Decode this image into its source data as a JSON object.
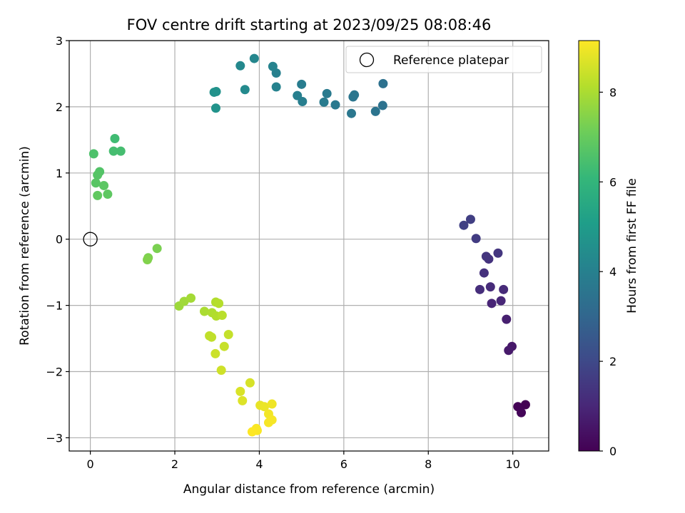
{
  "chart_data": {
    "type": "scatter",
    "title": "FOV centre drift starting at 2023/09/25 08:08:46",
    "xlabel": "Angular distance from reference (arcmin)",
    "ylabel": "Rotation from reference (arcmin)",
    "xlim": [
      -0.5,
      10.85
    ],
    "ylim": [
      -3.2,
      3.0
    ],
    "xticks": [
      0,
      2,
      4,
      6,
      8,
      10
    ],
    "yticks": [
      -3,
      -2,
      -1,
      0,
      1,
      2,
      3
    ],
    "grid": true,
    "colormap": "viridis",
    "colorbar": {
      "label": "Hours from first FF file",
      "range": [
        0,
        9.15
      ],
      "ticks": [
        0,
        2,
        4,
        6,
        8
      ]
    },
    "legend": {
      "position": "top-right",
      "entries": [
        "Reference platepar"
      ]
    },
    "reference_point": {
      "x": 0,
      "y": 0,
      "label": "Reference platepar"
    },
    "points": [
      {
        "x": 10.3,
        "y": -2.5,
        "c": 0.0
      },
      {
        "x": 10.12,
        "y": -2.53,
        "c": 0.05
      },
      {
        "x": 10.2,
        "y": -2.62,
        "c": 0.1
      },
      {
        "x": 9.98,
        "y": -1.62,
        "c": 0.6
      },
      {
        "x": 9.9,
        "y": -1.68,
        "c": 0.65
      },
      {
        "x": 9.85,
        "y": -1.21,
        "c": 0.8
      },
      {
        "x": 9.5,
        "y": -0.97,
        "c": 0.95
      },
      {
        "x": 9.72,
        "y": -0.93,
        "c": 1.0
      },
      {
        "x": 9.78,
        "y": -0.76,
        "c": 1.1
      },
      {
        "x": 9.47,
        "y": -0.72,
        "c": 1.15
      },
      {
        "x": 9.22,
        "y": -0.76,
        "c": 1.2
      },
      {
        "x": 9.32,
        "y": -0.51,
        "c": 1.3
      },
      {
        "x": 9.43,
        "y": -0.3,
        "c": 1.35
      },
      {
        "x": 9.37,
        "y": -0.26,
        "c": 1.4
      },
      {
        "x": 9.65,
        "y": -0.21,
        "c": 1.45
      },
      {
        "x": 9.13,
        "y": 0.01,
        "c": 1.6
      },
      {
        "x": 9.0,
        "y": 0.3,
        "c": 1.7
      },
      {
        "x": 8.84,
        "y": 0.21,
        "c": 1.75
      },
      {
        "x": 6.93,
        "y": 2.35,
        "c": 3.4
      },
      {
        "x": 6.92,
        "y": 2.02,
        "c": 3.45
      },
      {
        "x": 6.75,
        "y": 1.93,
        "c": 3.5
      },
      {
        "x": 6.22,
        "y": 2.15,
        "c": 3.55
      },
      {
        "x": 6.25,
        "y": 2.18,
        "c": 3.6
      },
      {
        "x": 6.18,
        "y": 1.9,
        "c": 3.65
      },
      {
        "x": 5.8,
        "y": 2.03,
        "c": 3.7
      },
      {
        "x": 5.6,
        "y": 2.2,
        "c": 3.75
      },
      {
        "x": 5.53,
        "y": 2.07,
        "c": 3.8
      },
      {
        "x": 5.0,
        "y": 2.34,
        "c": 3.85
      },
      {
        "x": 5.02,
        "y": 2.08,
        "c": 3.9
      },
      {
        "x": 4.9,
        "y": 2.17,
        "c": 3.95
      },
      {
        "x": 4.4,
        "y": 2.51,
        "c": 4.0
      },
      {
        "x": 4.4,
        "y": 2.3,
        "c": 4.05
      },
      {
        "x": 4.32,
        "y": 2.61,
        "c": 4.1
      },
      {
        "x": 3.88,
        "y": 2.73,
        "c": 4.2
      },
      {
        "x": 3.55,
        "y": 2.62,
        "c": 4.3
      },
      {
        "x": 3.66,
        "y": 2.26,
        "c": 4.35
      },
      {
        "x": 2.93,
        "y": 2.22,
        "c": 4.6
      },
      {
        "x": 2.98,
        "y": 2.23,
        "c": 4.65
      },
      {
        "x": 2.97,
        "y": 1.98,
        "c": 4.7
      },
      {
        "x": 0.58,
        "y": 1.52,
        "c": 6.3
      },
      {
        "x": 0.55,
        "y": 1.33,
        "c": 6.4
      },
      {
        "x": 0.72,
        "y": 1.33,
        "c": 6.4
      },
      {
        "x": 0.08,
        "y": 1.29,
        "c": 6.55
      },
      {
        "x": 0.22,
        "y": 1.02,
        "c": 6.65
      },
      {
        "x": 0.17,
        "y": 0.97,
        "c": 6.7
      },
      {
        "x": 0.13,
        "y": 0.85,
        "c": 6.75
      },
      {
        "x": 0.32,
        "y": 0.81,
        "c": 6.8
      },
      {
        "x": 0.41,
        "y": 0.68,
        "c": 6.85
      },
      {
        "x": 0.17,
        "y": 0.66,
        "c": 6.9
      },
      {
        "x": 1.58,
        "y": -0.14,
        "c": 7.3
      },
      {
        "x": 1.37,
        "y": -0.28,
        "c": 7.35
      },
      {
        "x": 1.35,
        "y": -0.31,
        "c": 7.4
      },
      {
        "x": 2.1,
        "y": -1.01,
        "c": 7.8
      },
      {
        "x": 2.22,
        "y": -0.94,
        "c": 7.85
      },
      {
        "x": 2.38,
        "y": -0.89,
        "c": 7.9
      },
      {
        "x": 2.7,
        "y": -1.09,
        "c": 8.0
      },
      {
        "x": 2.88,
        "y": -1.11,
        "c": 8.05
      },
      {
        "x": 2.98,
        "y": -1.16,
        "c": 8.1
      },
      {
        "x": 2.97,
        "y": -0.95,
        "c": 8.1
      },
      {
        "x": 3.04,
        "y": -0.97,
        "c": 8.15
      },
      {
        "x": 3.12,
        "y": -1.15,
        "c": 8.2
      },
      {
        "x": 2.82,
        "y": -1.46,
        "c": 8.3
      },
      {
        "x": 2.87,
        "y": -1.48,
        "c": 8.3
      },
      {
        "x": 3.27,
        "y": -1.44,
        "c": 8.35
      },
      {
        "x": 3.17,
        "y": -1.62,
        "c": 8.4
      },
      {
        "x": 2.96,
        "y": -1.73,
        "c": 8.45
      },
      {
        "x": 3.1,
        "y": -1.98,
        "c": 8.5
      },
      {
        "x": 3.78,
        "y": -2.17,
        "c": 8.6
      },
      {
        "x": 3.55,
        "y": -2.3,
        "c": 8.65
      },
      {
        "x": 3.6,
        "y": -2.44,
        "c": 8.7
      },
      {
        "x": 4.02,
        "y": -2.51,
        "c": 8.85
      },
      {
        "x": 4.12,
        "y": -2.53,
        "c": 8.9
      },
      {
        "x": 4.3,
        "y": -2.49,
        "c": 8.95
      },
      {
        "x": 4.22,
        "y": -2.64,
        "c": 9.0
      },
      {
        "x": 4.3,
        "y": -2.73,
        "c": 9.05
      },
      {
        "x": 4.22,
        "y": -2.77,
        "c": 9.05
      },
      {
        "x": 3.93,
        "y": -2.86,
        "c": 9.1
      },
      {
        "x": 3.95,
        "y": -2.89,
        "c": 9.1
      },
      {
        "x": 3.83,
        "y": -2.91,
        "c": 9.15
      }
    ]
  }
}
